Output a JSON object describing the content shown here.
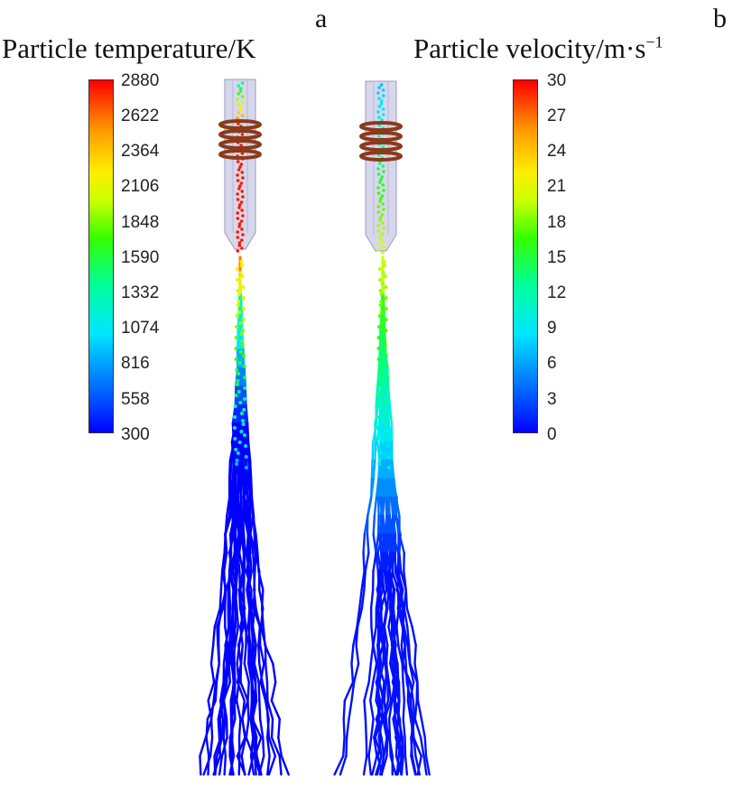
{
  "panels": [
    {
      "letter": "a",
      "title": "Particle temperature/K",
      "colorbar_ticks": [
        "2880",
        "2622",
        "2364",
        "2106",
        "1848",
        "1590",
        "1332",
        "1074",
        "816",
        "558",
        "300"
      ]
    },
    {
      "letter": "b",
      "title_main": "Particle velocity/m·s",
      "title_sup": "−1",
      "colorbar_ticks": [
        "30",
        "27",
        "24",
        "21",
        "18",
        "15",
        "12",
        "9",
        "6",
        "3",
        "0"
      ]
    }
  ],
  "colors": {
    "colormap": [
      "#0000ff",
      "#0066ff",
      "#00e6ff",
      "#00ff99",
      "#33ff00",
      "#ccff00",
      "#ffee00",
      "#ff9900",
      "#ff0000"
    ],
    "torch_body": "#c9c9e6",
    "coil": "#8b3a1a"
  }
}
